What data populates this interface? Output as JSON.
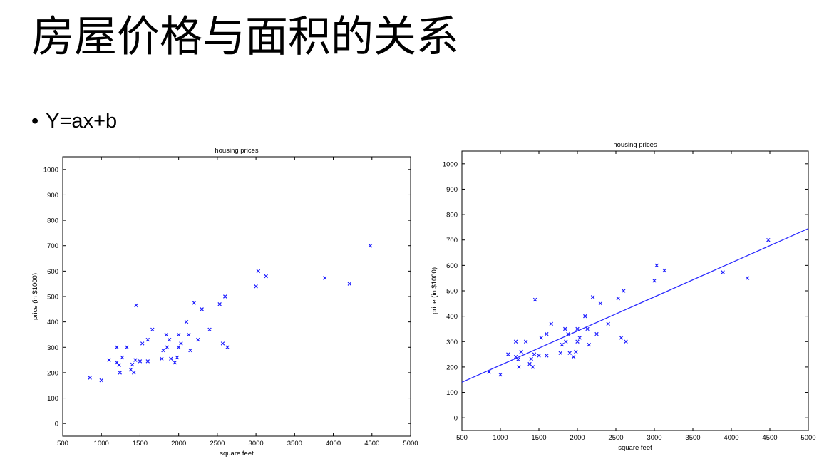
{
  "slide": {
    "title": "房屋价格与面积的关系",
    "bullet": "Y=ax+b"
  },
  "chart_data": [
    {
      "type": "scatter",
      "title": "housing prices",
      "xlabel": "square feet",
      "ylabel": "price (in $1000)",
      "xlim": [
        500,
        5000
      ],
      "ylim": [
        -50,
        1050
      ],
      "xticks": [
        500,
        1000,
        1500,
        2000,
        2500,
        3000,
        3500,
        4000,
        4500,
        5000
      ],
      "yticks": [
        0,
        100,
        200,
        300,
        400,
        500,
        600,
        700,
        800,
        900,
        1000
      ],
      "grid": false,
      "marker_color": "#1a1aff",
      "points": [
        [
          852,
          180
        ],
        [
          1000,
          170
        ],
        [
          1100,
          250
        ],
        [
          1200,
          300
        ],
        [
          1200,
          240
        ],
        [
          1230,
          230
        ],
        [
          1240,
          200
        ],
        [
          1270,
          260
        ],
        [
          1330,
          300
        ],
        [
          1380,
          212
        ],
        [
          1400,
          232
        ],
        [
          1420,
          200
        ],
        [
          1440,
          250
        ],
        [
          1450,
          465
        ],
        [
          1500,
          245
        ],
        [
          1530,
          315
        ],
        [
          1600,
          330
        ],
        [
          1600,
          245
        ],
        [
          1660,
          370
        ],
        [
          1780,
          255
        ],
        [
          1800,
          288
        ],
        [
          1850,
          300
        ],
        [
          1840,
          350
        ],
        [
          1880,
          330
        ],
        [
          1900,
          255
        ],
        [
          1950,
          240
        ],
        [
          1980,
          260
        ],
        [
          2000,
          300
        ],
        [
          2000,
          350
        ],
        [
          2030,
          315
        ],
        [
          2100,
          400
        ],
        [
          2130,
          350
        ],
        [
          2150,
          288
        ],
        [
          2200,
          475
        ],
        [
          2250,
          330
        ],
        [
          2300,
          450
        ],
        [
          2400,
          370
        ],
        [
          2530,
          470
        ],
        [
          2570,
          315
        ],
        [
          2600,
          500
        ],
        [
          2630,
          300
        ],
        [
          3000,
          540
        ],
        [
          3030,
          600
        ],
        [
          3130,
          580
        ],
        [
          3890,
          573
        ],
        [
          4210,
          550
        ],
        [
          4480,
          700
        ]
      ]
    },
    {
      "type": "scatter",
      "title": "housing prices",
      "xlabel": "square feet",
      "ylabel": "price (in $1000)",
      "xlim": [
        500,
        5000
      ],
      "ylim": [
        -50,
        1050
      ],
      "xticks": [
        500,
        1000,
        1500,
        2000,
        2500,
        3000,
        3500,
        4000,
        4500,
        5000
      ],
      "yticks": [
        0,
        100,
        200,
        300,
        400,
        500,
        600,
        700,
        800,
        900,
        1000
      ],
      "grid": false,
      "marker_color": "#1a1aff",
      "fit_line": {
        "color": "#2a2aff",
        "points": [
          [
            500,
            140
          ],
          [
            5000,
            745
          ]
        ]
      },
      "points": [
        [
          852,
          180
        ],
        [
          1000,
          170
        ],
        [
          1100,
          250
        ],
        [
          1200,
          300
        ],
        [
          1200,
          240
        ],
        [
          1230,
          230
        ],
        [
          1240,
          200
        ],
        [
          1270,
          260
        ],
        [
          1330,
          300
        ],
        [
          1380,
          212
        ],
        [
          1400,
          232
        ],
        [
          1420,
          200
        ],
        [
          1440,
          250
        ],
        [
          1450,
          465
        ],
        [
          1500,
          245
        ],
        [
          1530,
          315
        ],
        [
          1600,
          330
        ],
        [
          1600,
          245
        ],
        [
          1660,
          370
        ],
        [
          1780,
          255
        ],
        [
          1800,
          288
        ],
        [
          1850,
          300
        ],
        [
          1840,
          350
        ],
        [
          1880,
          330
        ],
        [
          1900,
          255
        ],
        [
          1950,
          240
        ],
        [
          1980,
          260
        ],
        [
          2000,
          300
        ],
        [
          2000,
          350
        ],
        [
          2030,
          315
        ],
        [
          2100,
          400
        ],
        [
          2130,
          350
        ],
        [
          2150,
          288
        ],
        [
          2200,
          475
        ],
        [
          2250,
          330
        ],
        [
          2300,
          450
        ],
        [
          2400,
          370
        ],
        [
          2530,
          470
        ],
        [
          2570,
          315
        ],
        [
          2600,
          500
        ],
        [
          2630,
          300
        ],
        [
          3000,
          540
        ],
        [
          3030,
          600
        ],
        [
          3130,
          580
        ],
        [
          3890,
          573
        ],
        [
          4210,
          550
        ],
        [
          4480,
          700
        ]
      ]
    }
  ]
}
